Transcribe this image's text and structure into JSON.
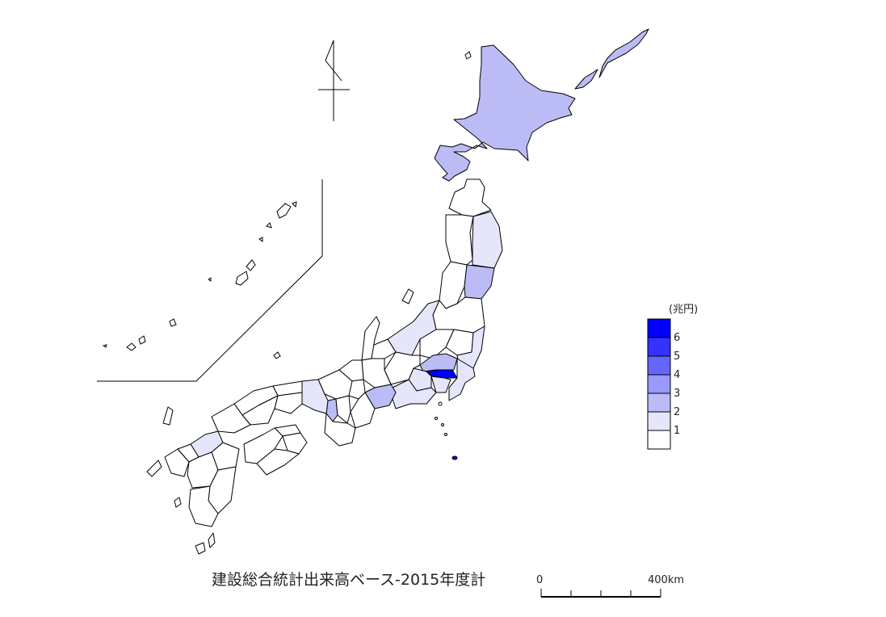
{
  "title": "建設総合統計出来高ベース-2015年度計",
  "legend": {
    "unit": "(兆円)",
    "bins": [
      {
        "label": "6",
        "color": "#0000ff"
      },
      {
        "label": "5",
        "color": "#3333ff"
      },
      {
        "label": "4",
        "color": "#6666ff"
      },
      {
        "label": "3",
        "color": "#9999ff"
      },
      {
        "label": "2",
        "color": "#bbbbf5"
      },
      {
        "label": "1",
        "color": "#e6e6fa"
      },
      {
        "label": "",
        "color": "#ffffff"
      }
    ]
  },
  "scale_bar": {
    "start_label": "0",
    "end_label": "400km"
  },
  "colors": {
    "boundary": "#000000",
    "shade_hokkaido": "#bbbbf5",
    "shade_tokyo": "#0000ff",
    "shade_aichi": "#bbbbf5",
    "shade_mid": "#bbbbf5",
    "shade_light": "#e6e6fa",
    "shade_none": "#ffffff"
  }
}
